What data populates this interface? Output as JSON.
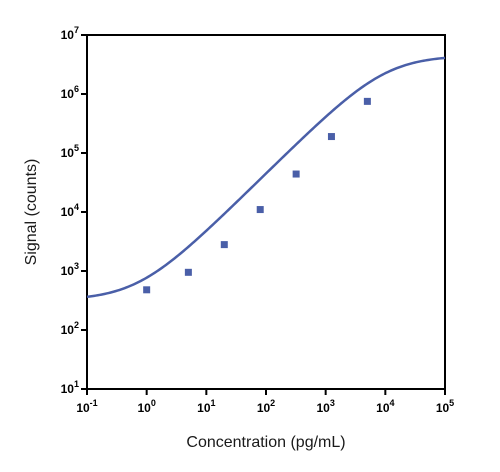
{
  "chart_data": {
    "type": "line",
    "title": "",
    "xlabel": "Concentration (pg/mL)",
    "ylabel": "Signal (counts)",
    "x_scale": "log",
    "y_scale": "log",
    "xlim": [
      0.1,
      100000
    ],
    "ylim": [
      10,
      10000000
    ],
    "x_ticks": [
      {
        "base": "10",
        "exp": "-1"
      },
      {
        "base": "10",
        "exp": "0"
      },
      {
        "base": "10",
        "exp": "1"
      },
      {
        "base": "10",
        "exp": "2"
      },
      {
        "base": "10",
        "exp": "3"
      },
      {
        "base": "10",
        "exp": "4"
      },
      {
        "base": "10",
        "exp": "5"
      }
    ],
    "y_ticks": [
      {
        "base": "10",
        "exp": "1"
      },
      {
        "base": "10",
        "exp": "2"
      },
      {
        "base": "10",
        "exp": "3"
      },
      {
        "base": "10",
        "exp": "4"
      },
      {
        "base": "10",
        "exp": "5"
      },
      {
        "base": "10",
        "exp": "6"
      },
      {
        "base": "10",
        "exp": "7"
      }
    ],
    "grid": false,
    "legend": "none",
    "series_color": "#4a5fa8",
    "points": [
      {
        "x": 1,
        "y": 480
      },
      {
        "x": 5,
        "y": 950
      },
      {
        "x": 20,
        "y": 2800
      },
      {
        "x": 80,
        "y": 11000
      },
      {
        "x": 320,
        "y": 44000
      },
      {
        "x": 1250,
        "y": 190000
      },
      {
        "x": 5000,
        "y": 750000
      }
    ],
    "fit_curve": {
      "model": "4PL",
      "bottom": 320,
      "top": 4500000,
      "ec50": 10000,
      "hill": 1.0
    }
  }
}
